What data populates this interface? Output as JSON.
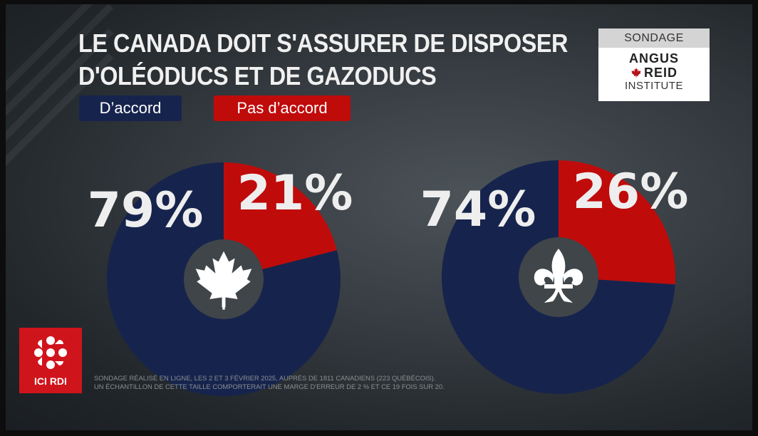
{
  "title": {
    "line1": "LE CANADA DOIT S'ASSURER DE DISPOSER",
    "line2": "D'OLÉODUCS ET DE GAZODUCS"
  },
  "legend": {
    "agree": "D’accord",
    "disagree": "Pas d’accord"
  },
  "badge": {
    "label": "SONDAGE",
    "org_line1": "ANGUS",
    "org_line2": "REID",
    "org_line3": "INSTITUTE",
    "leaf_icon": "maple-leaf-icon"
  },
  "colors": {
    "agree": "#16244d",
    "disagree": "#c00b0b",
    "center": "#3f4549",
    "brand": "#d0141b"
  },
  "chart_data": [
    {
      "type": "pie",
      "donut": true,
      "center_icon": "maple-leaf-icon",
      "categories": [
        "D’accord",
        "Pas d’accord"
      ],
      "values": [
        79,
        21
      ],
      "labels": [
        "79%",
        "21%"
      ]
    },
    {
      "type": "pie",
      "donut": true,
      "center_icon": "fleur-de-lis-icon",
      "categories": [
        "D’accord",
        "Pas d’accord"
      ],
      "values": [
        74,
        26
      ],
      "labels": [
        "74%",
        "26%"
      ]
    }
  ],
  "logo": {
    "icon": "radio-canada-gem-icon",
    "label": "ICI RDI"
  },
  "footnote": {
    "line1": "SONDAGE RÉALISÉ EN LIGNE, LES 2 ET 3 FÉVRIER 2025, AUPRÈS DE 1811 CANADIENS (223 QUÉBÉCOIS).",
    "line2": "UN ÉCHANTILLON DE CETTE TAILLE COMPORTERAIT UNE MARGE D'ERREUR DE 2 % ET CE 19 FOIS SUR 20."
  }
}
